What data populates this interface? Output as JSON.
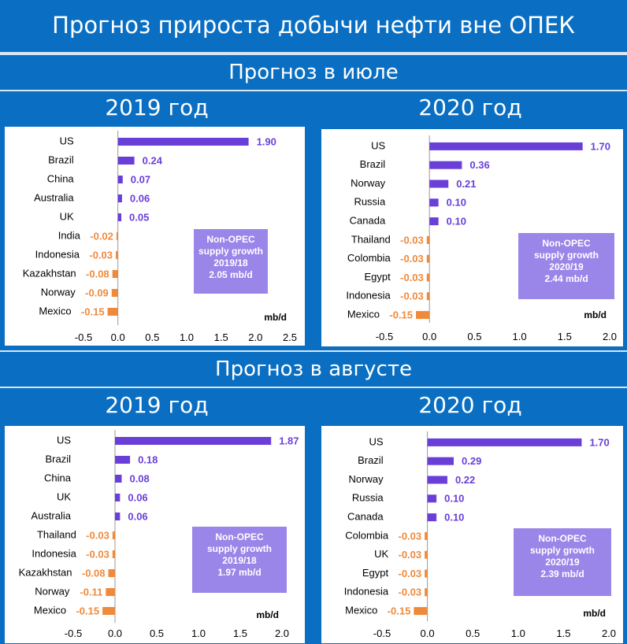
{
  "header": {
    "title": "Прогноз прироста добычи нефти вне ОПЕК",
    "section_july": "Прогноз в июле",
    "section_august": "Прогноз в августе"
  },
  "colors": {
    "background": "#0a6fc2",
    "positive_bar": "#6a3fd8",
    "negative_bar": "#ef8a3c",
    "positive_label": "#6a3fd8",
    "negative_label": "#ef8a3c",
    "summary_box": "#9a85e8"
  },
  "chart_data": [
    {
      "id": "jul2019",
      "panel_title": "2019 год",
      "type": "bar",
      "orientation": "horizontal",
      "categories": [
        "US",
        "Brazil",
        "China",
        "Australia",
        "UK",
        "India",
        "Indonesia",
        "Kazakhstan",
        "Norway",
        "Mexico"
      ],
      "values": [
        1.9,
        0.24,
        0.07,
        0.06,
        0.05,
        -0.02,
        -0.03,
        -0.08,
        -0.09,
        -0.15
      ],
      "value_labels": [
        "1.90",
        "0.24",
        "0.07",
        "0.06",
        "0.05",
        "-0.02",
        "-0.03",
        "-0.08",
        "-0.09",
        "-0.15"
      ],
      "xlim": [
        -0.5,
        2.5
      ],
      "xticks": [
        -0.5,
        0.0,
        0.5,
        1.0,
        1.5,
        2.0,
        2.5
      ],
      "xtick_labels": [
        "-0.5",
        "0.0",
        "0.5",
        "1.0",
        "1.5",
        "2.0",
        "2.5"
      ],
      "unit": "mb/d",
      "summary": [
        "Non-OPEC",
        "supply growth",
        "2019/18",
        "2.05 mb/d"
      ]
    },
    {
      "id": "jul2020",
      "panel_title": "2020 год",
      "type": "bar",
      "orientation": "horizontal",
      "categories": [
        "US",
        "Brazil",
        "Norway",
        "Russia",
        "Canada",
        "Thailand",
        "Colombia",
        "Egypt",
        "Indonesia",
        "Mexico"
      ],
      "values": [
        1.7,
        0.36,
        0.21,
        0.1,
        0.1,
        -0.03,
        -0.03,
        -0.03,
        -0.03,
        -0.15
      ],
      "value_labels": [
        "1.70",
        "0.36",
        "0.21",
        "0.10",
        "0.10",
        "-0.03",
        "-0.03",
        "-0.03",
        "-0.03",
        "-0.15"
      ],
      "xlim": [
        -0.5,
        2.0
      ],
      "xticks": [
        -0.5,
        0.0,
        0.5,
        1.0,
        1.5,
        2.0
      ],
      "xtick_labels": [
        "-0.5",
        "0.0",
        "0.5",
        "1.0",
        "1.5",
        "2.0"
      ],
      "unit": "mb/d",
      "summary": [
        "Non-OPEC",
        "supply growth",
        "2020/19",
        "2.44 mb/d"
      ]
    },
    {
      "id": "aug2019",
      "panel_title": "2019 год",
      "type": "bar",
      "orientation": "horizontal",
      "categories": [
        "US",
        "Brazil",
        "China",
        "UK",
        "Australia",
        "Thailand",
        "Indonesia",
        "Kazakhstan",
        "Norway",
        "Mexico"
      ],
      "values": [
        1.87,
        0.18,
        0.08,
        0.06,
        0.06,
        -0.03,
        -0.03,
        -0.08,
        -0.11,
        -0.15
      ],
      "value_labels": [
        "1.87",
        "0.18",
        "0.08",
        "0.06",
        "0.06",
        "-0.03",
        "-0.03",
        "-0.08",
        "-0.11",
        "-0.15"
      ],
      "xlim": [
        -0.5,
        2.0
      ],
      "xticks": [
        -0.5,
        0.0,
        0.5,
        1.0,
        1.5,
        2.0
      ],
      "xtick_labels": [
        "-0.5",
        "0.0",
        "0.5",
        "1.0",
        "1.5",
        "2.0"
      ],
      "unit": "mb/d",
      "summary": [
        "Non-OPEC",
        "supply growth",
        "2019/18",
        "1.97 mb/d"
      ]
    },
    {
      "id": "aug2020",
      "panel_title": "2020 год",
      "type": "bar",
      "orientation": "horizontal",
      "categories": [
        "US",
        "Brazil",
        "Norway",
        "Russia",
        "Canada",
        "Colombia",
        "UK",
        "Egypt",
        "Indonesia",
        "Mexico"
      ],
      "values": [
        1.7,
        0.29,
        0.22,
        0.1,
        0.1,
        -0.03,
        -0.03,
        -0.03,
        -0.03,
        -0.15
      ],
      "value_labels": [
        "1.70",
        "0.29",
        "0.22",
        "0.10",
        "0.10",
        "-0.03",
        "-0.03",
        "-0.03",
        "-0.03",
        "-0.15"
      ],
      "xlim": [
        -0.5,
        2.0
      ],
      "xticks": [
        -0.5,
        0.0,
        0.5,
        1.0,
        1.5,
        2.0
      ],
      "xtick_labels": [
        "-0.5",
        "0.0",
        "0.5",
        "1.0",
        "1.5",
        "2.0"
      ],
      "unit": "mb/d",
      "summary": [
        "Non-OPEC",
        "supply growth",
        "2020/19",
        "2.39 mb/d"
      ]
    }
  ]
}
